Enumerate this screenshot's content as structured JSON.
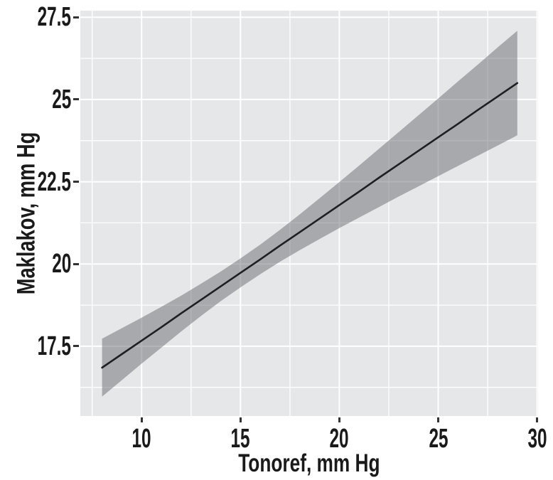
{
  "chart_data": {
    "type": "line",
    "title": "",
    "xlabel": "Tonoref, mm Hg",
    "ylabel": "Maklakov, mm Hg",
    "xlim": [
      6.9,
      30.05
    ],
    "ylim": [
      15.38,
      27.7
    ],
    "x_ticks": [
      10,
      15,
      20,
      25,
      30
    ],
    "x_tick_labels": [
      "10",
      "15",
      "20",
      "25",
      "30"
    ],
    "x_minor_ticks": [
      7.5,
      12.5,
      17.5,
      22.5,
      27.5
    ],
    "y_ticks": [
      17.5,
      20,
      22.5,
      25,
      27.5
    ],
    "y_tick_labels": [
      "17.5",
      "20",
      "22.5",
      "25",
      "27.5"
    ],
    "y_minor_ticks": [
      16.25,
      18.75,
      21.25,
      23.75,
      26.25
    ],
    "grid": "major+minor, white on gray panel",
    "legend": "none",
    "series": [
      {
        "name": "linear-fit",
        "x": [
          8,
          9,
          10,
          11,
          12,
          13,
          14,
          15,
          16,
          17,
          18,
          19,
          20,
          21,
          22,
          23,
          24,
          25,
          26,
          27,
          28,
          29
        ],
        "y": [
          16.85,
          17.26,
          17.67,
          18.08,
          18.5,
          18.91,
          19.32,
          19.73,
          20.14,
          20.56,
          20.97,
          21.38,
          21.79,
          22.2,
          22.62,
          23.03,
          23.44,
          23.85,
          24.26,
          24.68,
          25.09,
          25.5
        ]
      }
    ],
    "band": {
      "name": "confidence-interval",
      "x": [
        8,
        9,
        10,
        11,
        12,
        13,
        14,
        15,
        16,
        17,
        18,
        19,
        20,
        21,
        22,
        23,
        24,
        25,
        26,
        27,
        28,
        29
      ],
      "upper": [
        17.73,
        18.05,
        18.37,
        18.7,
        19.04,
        19.4,
        19.77,
        20.17,
        20.59,
        21.04,
        21.51,
        22.0,
        22.49,
        22.99,
        23.5,
        24.01,
        24.52,
        25.03,
        25.55,
        26.06,
        26.58,
        27.09
      ],
      "lower": [
        15.97,
        16.47,
        16.97,
        17.46,
        17.95,
        18.42,
        18.87,
        19.29,
        19.69,
        20.07,
        20.42,
        20.76,
        21.09,
        21.41,
        21.73,
        22.05,
        22.36,
        22.67,
        22.98,
        23.29,
        23.6,
        23.91
      ]
    },
    "colors": {
      "panel_bg": "#e6e7e9",
      "grid": "#ffffff",
      "line": "#1e1f21",
      "band_fill": "#6e7176",
      "band_opacity": 0.52,
      "text": "#1a1a1a",
      "tick_mark": "#333333"
    }
  }
}
